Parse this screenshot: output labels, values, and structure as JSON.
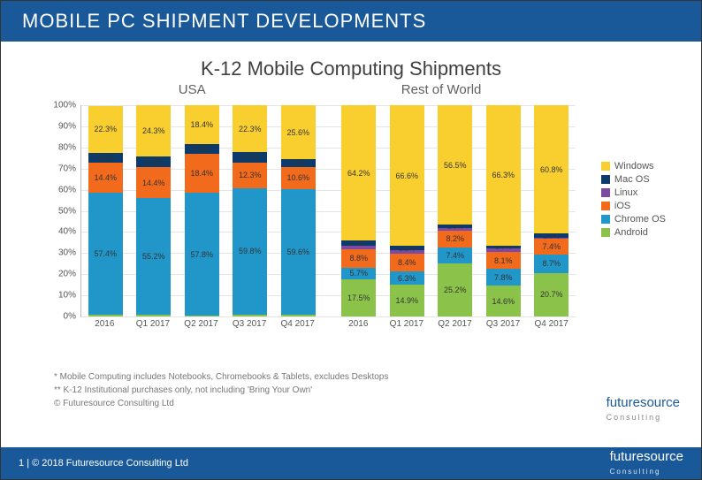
{
  "header": {
    "title": "MOBILE PC SHIPMENT DEVELOPMENTS"
  },
  "chart": {
    "type": "stacked-bar",
    "title": "K-12 Mobile Computing Shipments",
    "regions": [
      "USA",
      "Rest of World"
    ],
    "ylim": [
      0,
      100
    ],
    "ytick_step": 10,
    "ytick_suffix": "%",
    "background_color": "#ffffff",
    "grid_color": "#e5e5e5",
    "series": [
      {
        "name": "Android",
        "color": "#8bc34a"
      },
      {
        "name": "Chrome OS",
        "color": "#2196c9"
      },
      {
        "name": "iOS",
        "color": "#f26a1b"
      },
      {
        "name": "Linux",
        "color": "#7d4aa3"
      },
      {
        "name": "Mac OS",
        "color": "#0b3a6b"
      },
      {
        "name": "Windows",
        "color": "#f9cf2f"
      }
    ],
    "legend_order": [
      "Windows",
      "Mac OS",
      "Linux",
      "iOS",
      "Chrome OS",
      "Android"
    ],
    "categories": [
      "2016",
      "Q1 2017",
      "Q2 2017",
      "Q3 2017",
      "Q4 2017",
      "2016",
      "Q1 2017",
      "Q2 2017",
      "Q3 2017",
      "Q4 2017"
    ],
    "group_split": 5,
    "data": [
      {
        "Android": 1.0,
        "Chrome OS": 57.4,
        "iOS": 14.4,
        "Linux": 0.0,
        "Mac OS": 4.6,
        "Windows": 22.3,
        "labels": {
          "Chrome OS": "57.4%",
          "iOS": "14.4%",
          "Mac OS": "4.6%",
          "Windows": "22.3%"
        }
      },
      {
        "Android": 1.0,
        "Chrome OS": 55.2,
        "iOS": 14.4,
        "Linux": 0.0,
        "Mac OS": 5.1,
        "Windows": 24.3,
        "labels": {
          "Chrome OS": "55.2%",
          "iOS": "14.4%",
          "Mac OS": "5.1%",
          "Windows": "24.3%"
        }
      },
      {
        "Android": 0.6,
        "Chrome OS": 57.8,
        "iOS": 18.4,
        "Linux": 0.0,
        "Mac OS": 4.8,
        "Windows": 18.4,
        "labels": {
          "Chrome OS": "57.8%",
          "iOS": "18.4%",
          "Mac OS": "4.8%",
          "Windows": "18.4%"
        }
      },
      {
        "Android": 0.9,
        "Chrome OS": 59.8,
        "iOS": 12.3,
        "Linux": 0.0,
        "Mac OS": 4.7,
        "Windows": 22.3,
        "labels": {
          "Chrome OS": "59.8%",
          "iOS": "12.3%",
          "Mac OS": "4.7%",
          "Windows": "22.3%"
        }
      },
      {
        "Android": 0.7,
        "Chrome OS": 59.6,
        "iOS": 10.6,
        "Linux": 0.0,
        "Mac OS": 3.5,
        "Windows": 25.6,
        "labels": {
          "Chrome OS": "59.6%",
          "iOS": "10.6%",
          "Mac OS": "3.5%",
          "Windows": "25.6%"
        }
      },
      {
        "Android": 17.5,
        "Chrome OS": 5.7,
        "iOS": 8.8,
        "Linux": 1.5,
        "Mac OS": 2.3,
        "Windows": 64.2,
        "labels": {
          "Android": "17.5%",
          "Chrome OS": "5.7%",
          "iOS": "8.8%",
          "Mac OS": "2.3%",
          "Windows": "64.2%"
        }
      },
      {
        "Android": 14.9,
        "Chrome OS": 6.3,
        "iOS": 8.4,
        "Linux": 1.7,
        "Mac OS": 2.1,
        "Windows": 66.6,
        "labels": {
          "Android": "14.9%",
          "Chrome OS": "6.3%",
          "iOS": "8.4%",
          "Mac OS": "2.1%",
          "Windows": "66.6%"
        }
      },
      {
        "Android": 25.2,
        "Chrome OS": 7.4,
        "iOS": 8.2,
        "Linux": 0.9,
        "Mac OS": 1.8,
        "Windows": 56.5,
        "labels": {
          "Android": "25.2%",
          "Chrome OS": "7.4%",
          "iOS": "8.2%",
          "Mac OS": "1.8%",
          "Windows": "56.5%"
        }
      },
      {
        "Android": 14.6,
        "Chrome OS": 7.8,
        "iOS": 8.1,
        "Linux": 1.6,
        "Mac OS": 1.6,
        "Windows": 66.3,
        "labels": {
          "Android": "14.6%",
          "Chrome OS": "7.8%",
          "iOS": "8.1%",
          "Mac OS": "1.6%",
          "Windows": "66.3%"
        }
      },
      {
        "Android": 20.7,
        "Chrome OS": 8.7,
        "iOS": 7.4,
        "Linux": 0.4,
        "Mac OS": 2.0,
        "Windows": 60.8,
        "labels": {
          "Android": "20.7%",
          "Chrome OS": "8.7%",
          "iOS": "7.4%",
          "Mac OS": "2.0%",
          "Windows": "60.8%"
        }
      }
    ],
    "bar_width": 0.72,
    "label_fontsize": 9
  },
  "footnotes": [
    "* Mobile Computing includes Notebooks, Chromebooks & Tablets, excludes Desktops",
    "** K-12 Institutional purchases only, not including 'Bring Your Own'",
    "© Futuresource Consulting Ltd"
  ],
  "brand": {
    "name": "futuresource",
    "tag": "Consulting"
  },
  "footer": {
    "page": "1",
    "copyright": "© 2018 Futuresource Consulting Ltd"
  }
}
